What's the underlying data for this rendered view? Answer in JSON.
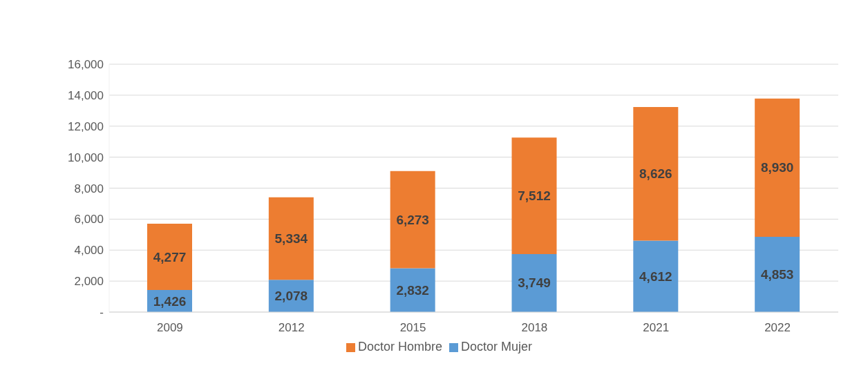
{
  "chart_data": {
    "type": "bar",
    "stacked": true,
    "categories": [
      "2009",
      "2012",
      "2015",
      "2018",
      "2021",
      "2022"
    ],
    "series": [
      {
        "name": "Doctor Mujer",
        "color": "#5b9bd5",
        "values": [
          1426,
          2078,
          2832,
          3749,
          4612,
          4853
        ],
        "value_labels": [
          "1,426",
          "2,078",
          "2,832",
          "3,749",
          "4,612",
          "4,853"
        ]
      },
      {
        "name": "Doctor Hombre",
        "color": "#ed7d31",
        "values": [
          4277,
          5334,
          6273,
          7512,
          8626,
          8930
        ],
        "value_labels": [
          "4,277",
          "5,334",
          "6,273",
          "7,512",
          "8,626",
          "8,930"
        ]
      }
    ],
    "ylim": [
      0,
      16000
    ],
    "yticks": [
      {
        "value": 0,
        "label": "-"
      },
      {
        "value": 2000,
        "label": "2,000"
      },
      {
        "value": 4000,
        "label": "4,000"
      },
      {
        "value": 6000,
        "label": "6,000"
      },
      {
        "value": 8000,
        "label": "8,000"
      },
      {
        "value": 10000,
        "label": "10,000"
      },
      {
        "value": 12000,
        "label": "12,000"
      },
      {
        "value": 14000,
        "label": "14,000"
      },
      {
        "value": 16000,
        "label": "16,000"
      }
    ],
    "grid": "y",
    "legend": "bottom"
  }
}
